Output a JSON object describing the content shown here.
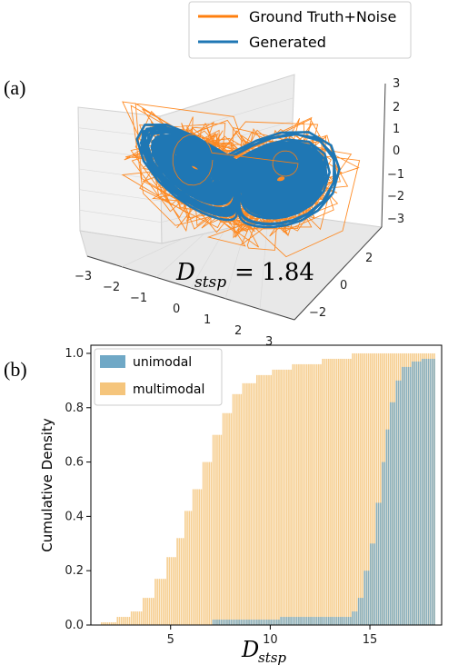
{
  "panel_a": {
    "label": "(a)",
    "legend": [
      {
        "name": "Ground Truth+Noise",
        "color": "#ff7f0e"
      },
      {
        "name": "Generated",
        "color": "#1f77b4"
      }
    ],
    "annotation": {
      "var_main": "D",
      "var_sub": "stsp",
      "equals": "= 1.84"
    },
    "x_ticks": [
      "−3",
      "−2",
      "−1",
      "0",
      "1",
      "2",
      "3"
    ],
    "y_ticks": [
      "2",
      "0",
      "−2"
    ],
    "z_ticks": [
      "3",
      "2",
      "1",
      "0",
      "−1",
      "−2",
      "−3"
    ]
  },
  "panel_b": {
    "label": "(b)",
    "ylabel": "Cumulative Density",
    "xlabel_main": "D",
    "xlabel_sub": "stsp"
  },
  "chart_data": [
    {
      "type": "scatter",
      "title": "",
      "series": [
        {
          "name": "Ground Truth+Noise",
          "description_points": "noisy Lorenz attractor trajectory"
        },
        {
          "name": "Generated",
          "description_points": "Lorenz attractor trajectory"
        }
      ],
      "xlim": [
        -3,
        3
      ],
      "ylim": [
        -3,
        3
      ],
      "zlim": [
        -3,
        3
      ],
      "annotation": "D_stsp = 1.84",
      "legend_position": "top-right"
    },
    {
      "type": "bar",
      "ylabel": "Cumulative Density",
      "xlabel": "D_stsp",
      "xlim": [
        1.0,
        18.6
      ],
      "ylim": [
        0,
        1.03
      ],
      "x_ticks": [
        5,
        10,
        15
      ],
      "y_ticks": [
        0.0,
        0.2,
        0.4,
        0.6,
        0.8,
        1.0
      ],
      "legend_position": "top-left",
      "grid": false,
      "series": [
        {
          "name": "unimodal",
          "color": "#6fa8c6",
          "points": [
            [
              7.0,
              0.0
            ],
            [
              7.0,
              0.02
            ],
            [
              10.3,
              0.02
            ],
            [
              10.4,
              0.03
            ],
            [
              13.8,
              0.03
            ],
            [
              14.0,
              0.05
            ],
            [
              14.3,
              0.1
            ],
            [
              14.6,
              0.2
            ],
            [
              14.9,
              0.3
            ],
            [
              15.2,
              0.45
            ],
            [
              15.5,
              0.6
            ],
            [
              15.7,
              0.72
            ],
            [
              15.9,
              0.82
            ],
            [
              16.2,
              0.9
            ],
            [
              16.5,
              0.95
            ],
            [
              17.0,
              0.97
            ],
            [
              17.5,
              0.98
            ],
            [
              18.2,
              0.99
            ]
          ]
        },
        {
          "name": "multimodal",
          "color": "#f5c57c",
          "points": [
            [
              1.5,
              0.01
            ],
            [
              2.3,
              0.03
            ],
            [
              3.0,
              0.05
            ],
            [
              3.6,
              0.1
            ],
            [
              4.2,
              0.17
            ],
            [
              4.8,
              0.25
            ],
            [
              5.2,
              0.32
            ],
            [
              5.6,
              0.42
            ],
            [
              6.0,
              0.5
            ],
            [
              6.5,
              0.6
            ],
            [
              7.0,
              0.7
            ],
            [
              7.5,
              0.78
            ],
            [
              8.0,
              0.85
            ],
            [
              8.5,
              0.89
            ],
            [
              9.2,
              0.92
            ],
            [
              10.0,
              0.94
            ],
            [
              11.0,
              0.96
            ],
            [
              12.5,
              0.98
            ],
            [
              14.0,
              1.0
            ],
            [
              18.2,
              1.0
            ]
          ]
        }
      ]
    }
  ]
}
